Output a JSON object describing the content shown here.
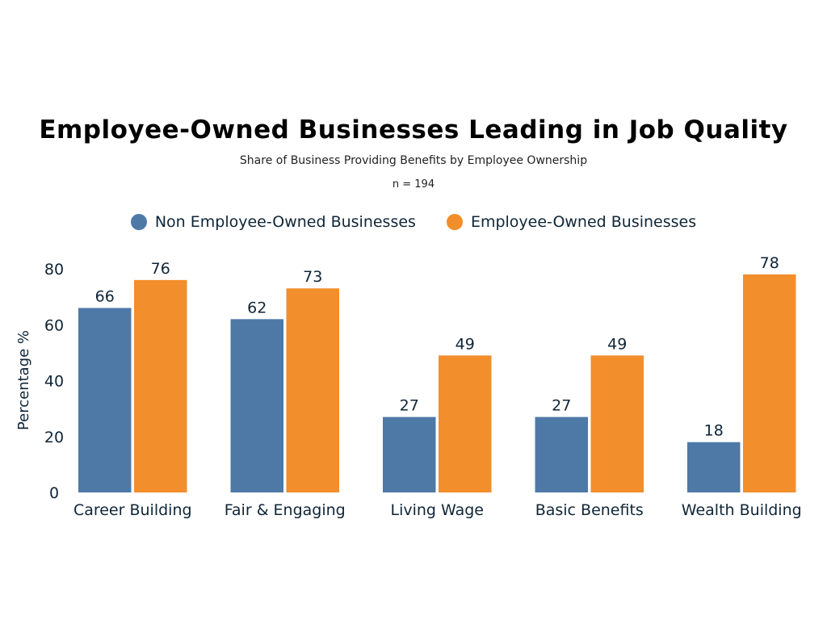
{
  "chart_data": {
    "type": "bar",
    "title": "Employee-Owned Businesses Leading in Job Quality",
    "subtitle": "Share of Business Providing Benefits by Employee Ownership",
    "note": "n = 194",
    "xlabel": "",
    "ylabel": "Percentage %",
    "ylim": [
      0,
      80
    ],
    "yticks": [
      0,
      20,
      40,
      60,
      80
    ],
    "grid": false,
    "legend_position": "top-center",
    "categories": [
      "Career Building",
      "Fair & Engaging",
      "Living Wage",
      "Basic Benefits",
      "Wealth Building"
    ],
    "series": [
      {
        "name": "Non Employee-Owned Businesses",
        "color": "#4e79a7",
        "values": [
          66,
          62,
          27,
          27,
          18
        ]
      },
      {
        "name": "Employee-Owned Businesses",
        "color": "#f28e2b",
        "values": [
          76,
          73,
          49,
          49,
          78
        ]
      }
    ]
  }
}
